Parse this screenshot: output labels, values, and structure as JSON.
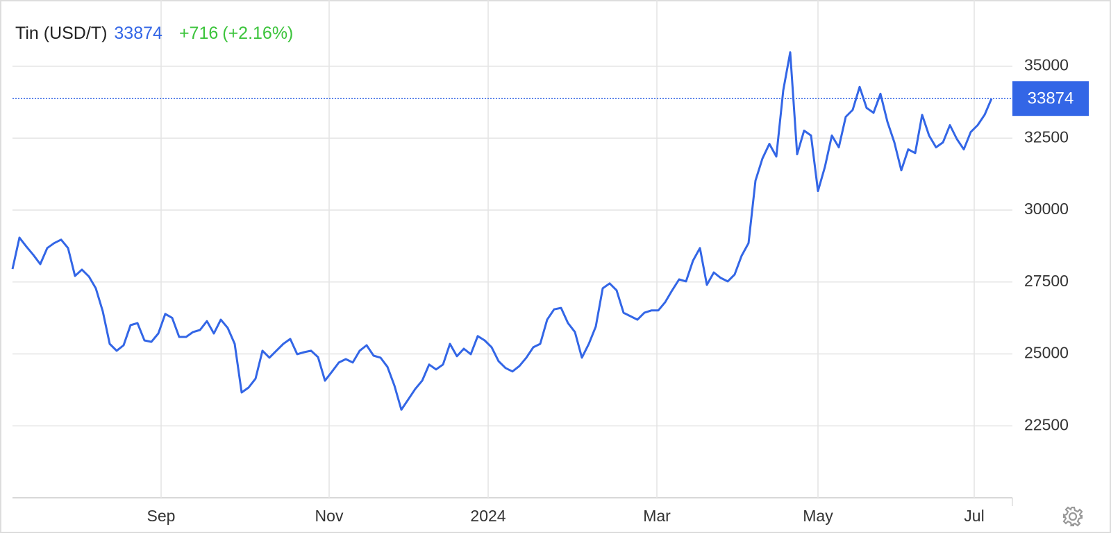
{
  "chart_data": {
    "type": "line",
    "title": "Tin (USD/T)",
    "last_value": 33874,
    "change": "+716",
    "change_percent": "(+2.16%)",
    "color": "#3366e6",
    "change_color": "#3cc43c",
    "values": [
      27950,
      29040,
      28730,
      28440,
      28120,
      28680,
      28850,
      28970,
      28680,
      27710,
      27930,
      27690,
      27280,
      26480,
      25350,
      25110,
      25300,
      26000,
      26070,
      25470,
      25420,
      25710,
      26390,
      26250,
      25590,
      25590,
      25760,
      25830,
      26140,
      25710,
      26190,
      25900,
      25350,
      23660,
      23830,
      24140,
      25110,
      24870,
      25110,
      25350,
      25520,
      24990,
      25060,
      25110,
      24890,
      24070,
      24380,
      24700,
      24820,
      24700,
      25110,
      25300,
      24940,
      24870,
      24550,
      23900,
      23060,
      23420,
      23780,
      24070,
      24630,
      24460,
      24630,
      25350,
      24920,
      25180,
      24990,
      25620,
      25470,
      25230,
      24750,
      24510,
      24390,
      24580,
      24870,
      25230,
      25350,
      26190,
      26550,
      26600,
      26070,
      25760,
      24870,
      25350,
      25950,
      27280,
      27450,
      27210,
      26430,
      26310,
      26190,
      26430,
      26510,
      26510,
      26800,
      27210,
      27590,
      27520,
      28240,
      28680,
      27400,
      27830,
      27640,
      27520,
      27760,
      28410,
      28850,
      31020,
      31790,
      32300,
      31860,
      34160,
      35480,
      31940,
      32760,
      32590,
      30660,
      31500,
      32590,
      32180,
      33240,
      33480,
      34280,
      33550,
      33380,
      34040,
      33070,
      32350,
      31380,
      32110,
      31980,
      33310,
      32590,
      32180,
      32350,
      32950,
      32470,
      32110,
      32710,
      32950,
      33310,
      33874
    ],
    "xlim": [
      0,
      144
    ],
    "xticks": [
      {
        "value": 21.4,
        "label": "Sep"
      },
      {
        "value": 45.6,
        "label": "Nov"
      },
      {
        "value": 68.5,
        "label": "2024"
      },
      {
        "value": 92.8,
        "label": "Mar"
      },
      {
        "value": 116,
        "label": "May"
      },
      {
        "value": 138.5,
        "label": "Jul"
      }
    ],
    "ylim": [
      20000,
      37300
    ],
    "yticks": [
      22500,
      25000,
      27500,
      30000,
      32500,
      35000
    ],
    "grid": true
  }
}
